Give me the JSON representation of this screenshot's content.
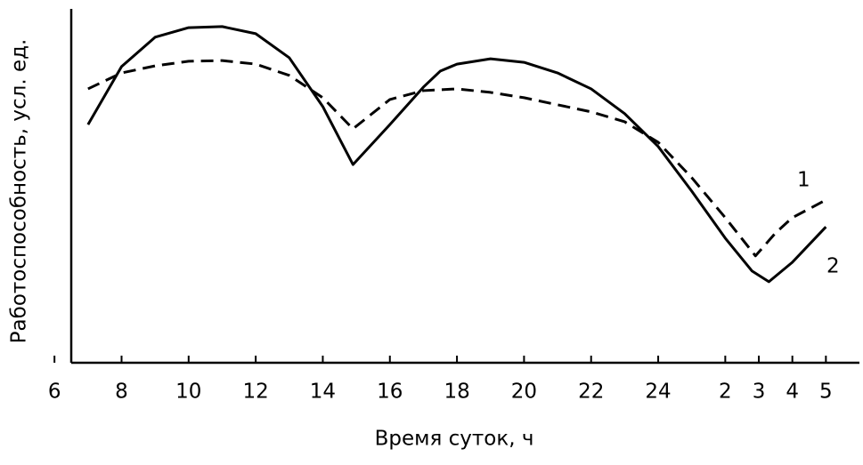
{
  "chart_data": {
    "type": "line",
    "xlabel": "Время суток, ч",
    "ylabel": "Работоспособность, усл. ед.",
    "xlim": [
      6.5,
      30
    ],
    "ylim": [
      0,
      100
    ],
    "xticks": [
      6,
      8,
      10,
      12,
      14,
      16,
      18,
      20,
      22,
      24,
      {
        "value": 26,
        "label": "2"
      },
      {
        "value": 27,
        "label": "3"
      },
      {
        "value": 28,
        "label": "4"
      },
      {
        "value": 29,
        "label": "5"
      }
    ],
    "series": [
      {
        "name": "1",
        "color": "#000000",
        "dashed": true,
        "x": [
          7,
          8,
          9,
          10,
          11,
          12,
          13,
          14,
          14.9,
          16,
          17,
          18,
          19,
          20,
          21,
          22,
          23,
          24,
          25,
          26,
          26.9,
          27.5,
          28,
          29
        ],
        "values": [
          77.4,
          81.9,
          83.9,
          85.2,
          85.4,
          84.4,
          81.2,
          74.9,
          66.1,
          74.4,
          76.9,
          77.4,
          76.4,
          74.9,
          72.9,
          70.9,
          68.1,
          62.3,
          52.3,
          41.0,
          30.2,
          36.7,
          41.0,
          46.0
        ]
      },
      {
        "name": "2",
        "color": "#000000",
        "dashed": false,
        "x": [
          7,
          8,
          9,
          10,
          11,
          12,
          13,
          14,
          14.9,
          16,
          17,
          17.5,
          18,
          19,
          20,
          21,
          22,
          23,
          24,
          25,
          26,
          26.8,
          27.3,
          28,
          29
        ],
        "values": [
          67.3,
          83.7,
          92.0,
          94.7,
          95.0,
          93.0,
          86.2,
          72.4,
          56.0,
          67.3,
          77.9,
          82.4,
          84.4,
          85.9,
          84.9,
          81.9,
          77.4,
          70.4,
          61.1,
          48.5,
          35.2,
          25.9,
          22.9,
          28.4,
          38.4
        ]
      }
    ]
  }
}
